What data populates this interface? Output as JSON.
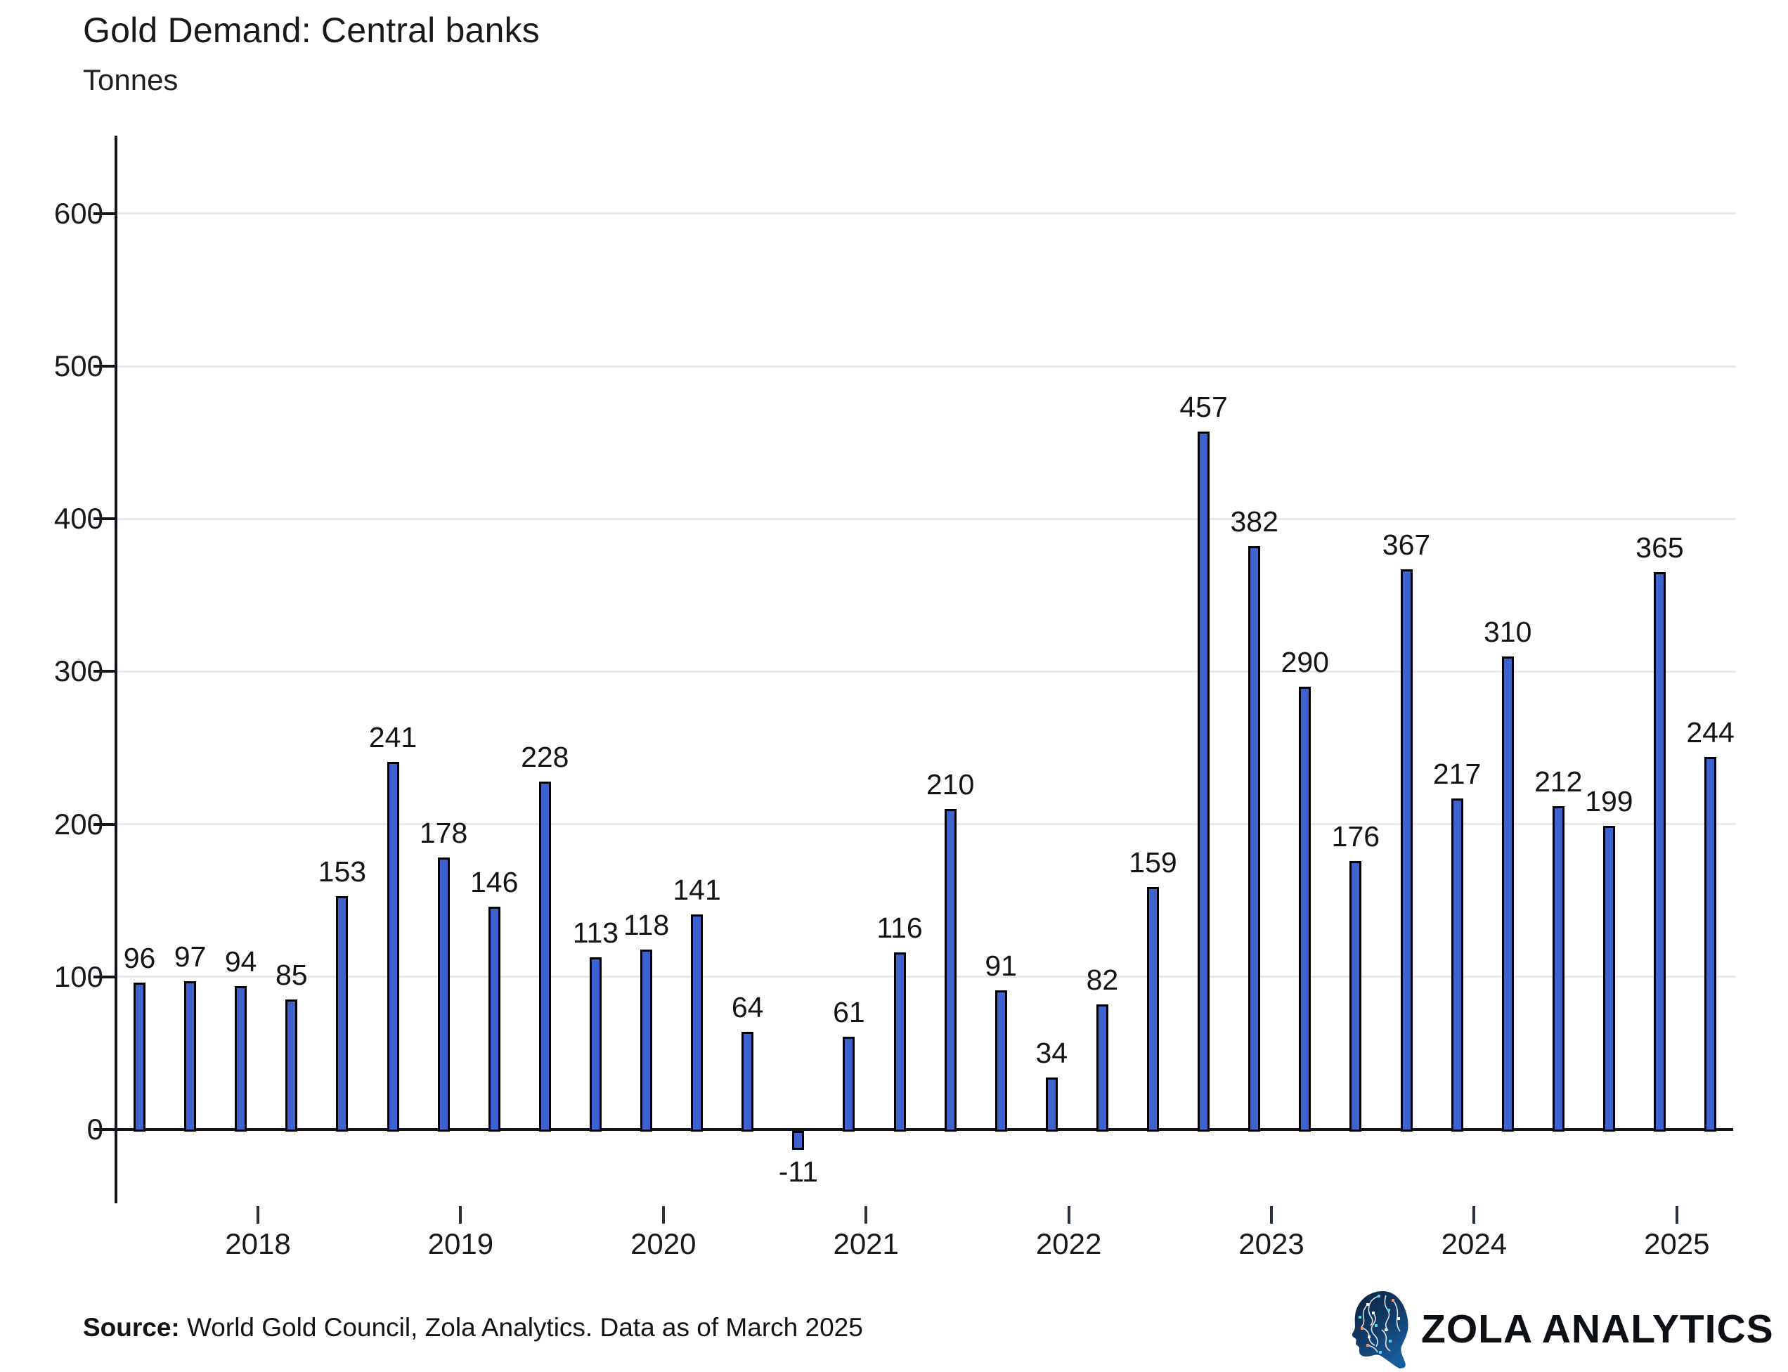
{
  "header": {
    "title": "Gold Demand: Central banks",
    "subtitle": "Tonnes"
  },
  "chart_data": {
    "type": "bar",
    "title": "Gold Demand: Central banks",
    "ylabel": "Tonnes",
    "x": [
      "2017 Q2",
      "2017 Q3",
      "2017 Q4",
      "2018 Q1",
      "2018 Q2",
      "2018 Q3",
      "2018 Q4",
      "2019 Q1",
      "2019 Q2",
      "2019 Q3",
      "2019 Q4",
      "2020 Q1",
      "2020 Q2",
      "2020 Q3",
      "2020 Q4",
      "2021 Q1",
      "2021 Q2",
      "2021 Q3",
      "2021 Q4",
      "2022 Q1",
      "2022 Q2",
      "2022 Q3",
      "2022 Q4",
      "2023 Q1",
      "2023 Q2",
      "2023 Q3",
      "2023 Q4",
      "2024 Q1",
      "2024 Q2",
      "2024 Q3",
      "2024 Q4",
      "2025 Q1"
    ],
    "values": [
      96,
      97,
      94,
      85,
      153,
      241,
      178,
      146,
      228,
      113,
      118,
      141,
      64,
      -11,
      61,
      116,
      210,
      91,
      34,
      82,
      159,
      457,
      382,
      290,
      176,
      367,
      217,
      310,
      212,
      199,
      365,
      244
    ],
    "value_labels_shown": true,
    "y_ticks": [
      0,
      100,
      200,
      300,
      400,
      500,
      600
    ],
    "year_ticks": [
      "2018",
      "2019",
      "2020",
      "2021",
      "2022",
      "2023",
      "2024",
      "2025"
    ],
    "ylim": [
      -47,
      651
    ],
    "grid": "horizontal",
    "legend": "none"
  },
  "colors": {
    "bar_fill": "#3E63CE",
    "bar_border": "#000000",
    "axis": "#12161C",
    "gridline": "#E9E9E9",
    "x_tick": "#2A3240",
    "label_text": "#141414",
    "logo_navy": "#0F2D55",
    "logo_teal": "#52D5E5",
    "logo_orange": "#F09268"
  },
  "footer": {
    "source_label": "Source:",
    "source_text": " World Gold Council, Zola Analytics. Data as of March 2025"
  },
  "branding": {
    "logo_icon": "circuit-head-icon",
    "logo_text": "ZOLA ANALYTICS"
  }
}
